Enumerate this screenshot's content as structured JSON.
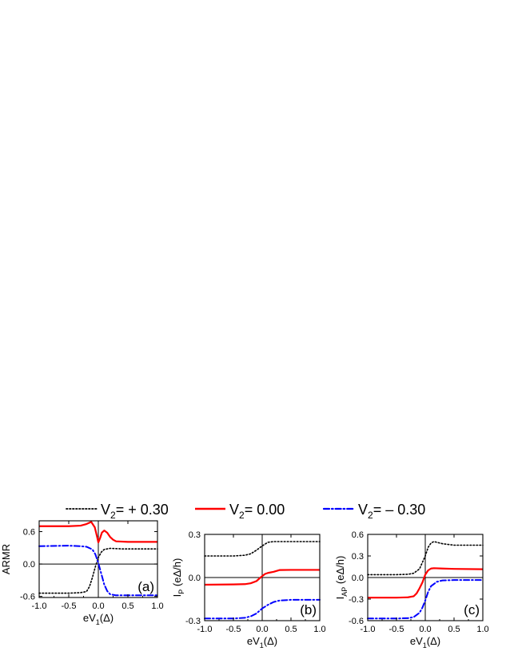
{
  "legend": [
    {
      "prefix": "V",
      "sub": "2",
      "text": "= + 0.30",
      "color": "#000000",
      "dash": "dot"
    },
    {
      "prefix": "V",
      "sub": "2",
      "text": "= 0.00",
      "color": "#ff0000",
      "dash": "solid"
    },
    {
      "prefix": "V",
      "sub": "2",
      "text": "= – 0.30",
      "color": "#0000ff",
      "dash": "dashdot"
    }
  ],
  "chart_data": [
    {
      "type": "line",
      "panel_label": "(a)",
      "ylabel": {
        "main": "ARMR",
        "sub": "",
        "unit": ""
      },
      "xlabel": {
        "main": "eV",
        "sub": "1",
        "unit": "(Δ)"
      },
      "xlim": [
        -1.0,
        1.0
      ],
      "ylim": [
        -0.62,
        0.8
      ],
      "xticks": [
        "-1.0",
        "-0.5",
        "0.0",
        "0.5",
        "1.0"
      ],
      "xtick_values": [
        -1.0,
        -0.5,
        0.0,
        0.5,
        1.0
      ],
      "yticks": [
        "-0.6",
        "0.0",
        "0.6"
      ],
      "ytick_values": [
        -0.6,
        0.0,
        0.6
      ],
      "series": [
        {
          "x": [
            -1.0,
            -0.5,
            -0.3,
            -0.2,
            -0.15,
            -0.1,
            -0.05,
            0.0,
            0.05,
            0.1,
            0.2,
            0.4,
            0.7,
            1.0
          ],
          "y": [
            -0.54,
            -0.54,
            -0.53,
            -0.51,
            -0.42,
            -0.25,
            -0.05,
            0.12,
            0.22,
            0.27,
            0.29,
            0.28,
            0.28,
            0.28
          ]
        },
        {
          "x": [
            -1.0,
            -0.5,
            -0.3,
            -0.2,
            -0.12,
            -0.06,
            -0.02,
            0.0,
            0.03,
            0.06,
            0.1,
            0.15,
            0.2,
            0.25,
            0.3,
            0.5,
            1.0
          ],
          "y": [
            0.7,
            0.7,
            0.71,
            0.74,
            0.78,
            0.68,
            0.5,
            0.4,
            0.48,
            0.58,
            0.62,
            0.58,
            0.5,
            0.45,
            0.42,
            0.41,
            0.41
          ]
        },
        {
          "x": [
            -1.0,
            -0.5,
            -0.3,
            -0.2,
            -0.1,
            -0.05,
            0.0,
            0.05,
            0.1,
            0.15,
            0.2,
            0.3,
            0.5,
            1.0
          ],
          "y": [
            0.33,
            0.34,
            0.33,
            0.32,
            0.27,
            0.18,
            0.02,
            -0.18,
            -0.38,
            -0.5,
            -0.56,
            -0.58,
            -0.58,
            -0.58
          ]
        }
      ]
    },
    {
      "type": "line",
      "panel_label": "(b)",
      "ylabel": {
        "main": "I",
        "sub": "P",
        "unit": " (eΔ/h)"
      },
      "xlabel": {
        "main": "eV",
        "sub": "1",
        "unit": "(Δ)"
      },
      "xlim": [
        -1.0,
        1.0
      ],
      "ylim": [
        -0.3,
        0.3
      ],
      "xticks": [
        "-1.0",
        "-0.5",
        "0.0",
        "0.5",
        "1.0"
      ],
      "xtick_values": [
        -1.0,
        -0.5,
        0.0,
        0.5,
        1.0
      ],
      "yticks": [
        "-0.3",
        "0.0",
        "0.3"
      ],
      "ytick_values": [
        -0.3,
        0.0,
        0.3
      ],
      "series": [
        {
          "x": [
            -1.0,
            -0.5,
            -0.3,
            -0.2,
            -0.1,
            0.0,
            0.1,
            0.2,
            0.3,
            0.5,
            1.0
          ],
          "y": [
            0.15,
            0.15,
            0.155,
            0.165,
            0.19,
            0.22,
            0.245,
            0.25,
            0.25,
            0.25,
            0.25
          ]
        },
        {
          "x": [
            -1.0,
            -0.5,
            -0.3,
            -0.2,
            -0.1,
            0.0,
            0.05,
            0.1,
            0.2,
            0.3,
            0.5,
            1.0
          ],
          "y": [
            -0.05,
            -0.048,
            -0.046,
            -0.04,
            -0.025,
            0.01,
            0.025,
            0.032,
            0.04,
            0.052,
            0.053,
            0.053
          ]
        },
        {
          "x": [
            -1.0,
            -0.5,
            -0.3,
            -0.2,
            -0.1,
            0.0,
            0.1,
            0.2,
            0.3,
            0.5,
            1.0
          ],
          "y": [
            -0.285,
            -0.285,
            -0.28,
            -0.27,
            -0.25,
            -0.215,
            -0.19,
            -0.17,
            -0.16,
            -0.155,
            -0.155
          ]
        }
      ]
    },
    {
      "type": "line",
      "panel_label": "(c)",
      "ylabel": {
        "main": "I",
        "sub": "AP",
        "unit": " (eΔ/h)"
      },
      "xlabel": {
        "main": "eV",
        "sub": "1",
        "unit": "(Δ)"
      },
      "xlim": [
        -1.0,
        1.0
      ],
      "ylim": [
        -0.6,
        0.6
      ],
      "xticks": [
        "-1.0",
        "-0.5",
        "0.0",
        "0.5",
        "1.0"
      ],
      "xtick_values": [
        -1.0,
        -0.5,
        0.0,
        0.5,
        1.0
      ],
      "yticks": [
        "-0.6",
        "-0.3",
        "0.0",
        "0.3",
        "0.6"
      ],
      "ytick_values": [
        -0.6,
        -0.3,
        0.0,
        0.3,
        0.6
      ],
      "series": [
        {
          "x": [
            -1.0,
            -0.5,
            -0.3,
            -0.2,
            -0.1,
            0.0,
            0.05,
            0.1,
            0.15,
            0.2,
            0.3,
            0.5,
            1.0
          ],
          "y": [
            0.04,
            0.04,
            0.045,
            0.06,
            0.12,
            0.3,
            0.42,
            0.48,
            0.5,
            0.49,
            0.47,
            0.45,
            0.45
          ]
        },
        {
          "x": [
            -1.0,
            -0.5,
            -0.3,
            -0.2,
            -0.15,
            -0.1,
            -0.05,
            0.0,
            0.05,
            0.1,
            0.15,
            0.3,
            0.5,
            1.0
          ],
          "y": [
            -0.28,
            -0.28,
            -0.275,
            -0.26,
            -0.22,
            -0.15,
            -0.07,
            0.04,
            0.1,
            0.125,
            0.13,
            0.125,
            0.12,
            0.115
          ]
        },
        {
          "x": [
            -1.0,
            -0.5,
            -0.3,
            -0.2,
            -0.1,
            -0.05,
            0.0,
            0.05,
            0.1,
            0.2,
            0.3,
            0.5,
            1.0
          ],
          "y": [
            -0.57,
            -0.57,
            -0.565,
            -0.55,
            -0.49,
            -0.42,
            -0.32,
            -0.2,
            -0.12,
            -0.06,
            -0.04,
            -0.035,
            -0.035
          ]
        }
      ]
    }
  ]
}
